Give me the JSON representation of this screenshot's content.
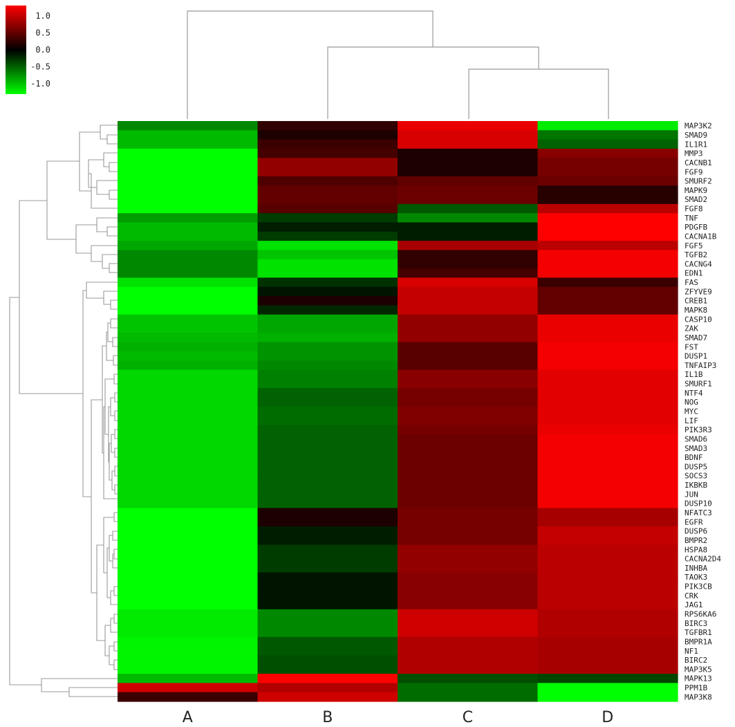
{
  "chart_data": {
    "type": "heatmap",
    "columns": [
      "A",
      "B",
      "C",
      "D"
    ],
    "rows": [
      "MAP3K2",
      "SMAD9",
      "IL1R1",
      "MMP3",
      "CACNB1",
      "FGF9",
      "SMURF2",
      "MAPK9",
      "SMAD2",
      "FGF8",
      "TNF",
      "PDGFB",
      "CACNA1B",
      "FGF5",
      "TGFB2",
      "CACNG4",
      "EDN1",
      "FAS",
      "ZFYVE9",
      "CREB1",
      "MAPK8",
      "CASP10",
      "ZAK",
      "SMAD7",
      "FST",
      "DUSP1",
      "TNFAIP3",
      "IL1B",
      "SMURF1",
      "NTF4",
      "NOG",
      "MYC",
      "LIF",
      "PIK3R3",
      "SMAD6",
      "SMAD3",
      "BDNF",
      "DUSP5",
      "SOCS3",
      "IKBKB",
      "JUN",
      "DUSP10",
      "NFATC3",
      "EGFR",
      "DUSP6",
      "BMPR2",
      "HSPA8",
      "CACNA2D4",
      "INHBA",
      "TAOK3",
      "PIK3CB",
      "CRK",
      "JAG1",
      "RPS6KA6",
      "BIRC3",
      "TGFBR1",
      "BMPR1A",
      "NF1",
      "BIRC2",
      "MAP3K5",
      "MAPK13",
      "PPM1B",
      "MAP3K8"
    ],
    "values": [
      [
        -0.7,
        0.25,
        1.2,
        -1.2
      ],
      [
        -0.95,
        0.15,
        1.1,
        -0.6
      ],
      [
        -0.95,
        0.3,
        1.1,
        -0.5
      ],
      [
        -1.3,
        0.35,
        0.15,
        0.7
      ],
      [
        -1.3,
        0.75,
        0.15,
        0.6
      ],
      [
        -1.3,
        0.75,
        0.15,
        0.6
      ],
      [
        -1.3,
        0.4,
        0.5,
        0.55
      ],
      [
        -1.3,
        0.5,
        0.55,
        0.2
      ],
      [
        -1.3,
        0.5,
        0.55,
        0.2
      ],
      [
        -1.3,
        0.45,
        -0.45,
        0.95
      ],
      [
        -0.8,
        -0.3,
        -0.7,
        1.3
      ],
      [
        -0.95,
        -0.15,
        -0.15,
        1.3
      ],
      [
        -0.95,
        -0.3,
        -0.15,
        1.3
      ],
      [
        -0.85,
        -1.15,
        0.85,
        0.95
      ],
      [
        -0.7,
        -1.0,
        0.25,
        1.25
      ],
      [
        -0.7,
        -1.15,
        0.25,
        1.25
      ],
      [
        -0.7,
        -1.15,
        0.35,
        1.25
      ],
      [
        -1.15,
        -0.25,
        1.1,
        0.3
      ],
      [
        -1.3,
        -0.1,
        1.0,
        0.5
      ],
      [
        -1.3,
        0.15,
        1.0,
        0.5
      ],
      [
        -1.3,
        -0.2,
        1.0,
        0.5
      ],
      [
        -1.0,
        -0.85,
        0.75,
        1.2
      ],
      [
        -1.0,
        -0.85,
        0.75,
        1.2
      ],
      [
        -0.95,
        -0.9,
        0.75,
        1.2
      ],
      [
        -0.9,
        -0.75,
        0.45,
        1.25
      ],
      [
        -0.95,
        -0.75,
        0.45,
        1.25
      ],
      [
        -0.9,
        -0.7,
        0.45,
        1.25
      ],
      [
        -1.1,
        -0.65,
        0.7,
        1.15
      ],
      [
        -1.1,
        -0.65,
        0.7,
        1.15
      ],
      [
        -1.1,
        -0.5,
        0.6,
        1.15
      ],
      [
        -1.1,
        -0.5,
        0.6,
        1.15
      ],
      [
        -1.1,
        -0.55,
        0.65,
        1.15
      ],
      [
        -1.1,
        -0.55,
        0.65,
        1.15
      ],
      [
        -1.1,
        -0.5,
        0.6,
        1.2
      ],
      [
        -1.1,
        -0.5,
        0.55,
        1.25
      ],
      [
        -1.1,
        -0.5,
        0.55,
        1.25
      ],
      [
        -1.1,
        -0.5,
        0.55,
        1.25
      ],
      [
        -1.1,
        -0.5,
        0.55,
        1.25
      ],
      [
        -1.1,
        -0.5,
        0.55,
        1.25
      ],
      [
        -1.1,
        -0.5,
        0.55,
        1.25
      ],
      [
        -1.1,
        -0.5,
        0.55,
        1.25
      ],
      [
        -1.1,
        -0.5,
        0.55,
        1.25
      ],
      [
        -1.35,
        0.15,
        0.6,
        0.85
      ],
      [
        -1.35,
        0.15,
        0.6,
        0.85
      ],
      [
        -1.3,
        -0.15,
        0.6,
        1.0
      ],
      [
        -1.3,
        -0.15,
        0.6,
        1.0
      ],
      [
        -1.3,
        -0.3,
        0.75,
        0.95
      ],
      [
        -1.3,
        -0.3,
        0.75,
        0.95
      ],
      [
        -1.3,
        -0.3,
        0.75,
        0.95
      ],
      [
        -1.3,
        -0.1,
        0.7,
        0.95
      ],
      [
        -1.3,
        -0.1,
        0.7,
        0.95
      ],
      [
        -1.3,
        -0.1,
        0.7,
        0.95
      ],
      [
        -1.3,
        -0.1,
        0.7,
        0.95
      ],
      [
        -1.2,
        -0.7,
        1.05,
        0.9
      ],
      [
        -1.2,
        -0.7,
        1.05,
        0.9
      ],
      [
        -1.2,
        -0.7,
        1.05,
        0.9
      ],
      [
        -1.25,
        -0.45,
        0.9,
        0.85
      ],
      [
        -1.25,
        -0.45,
        0.9,
        0.85
      ],
      [
        -1.25,
        -0.4,
        0.9,
        0.85
      ],
      [
        -1.25,
        -0.4,
        0.9,
        0.85
      ],
      [
        -0.95,
        1.3,
        -0.4,
        -0.35
      ],
      [
        1.05,
        0.9,
        -0.55,
        -1.3
      ],
      [
        0.3,
        1.05,
        -0.55,
        -1.3
      ]
    ],
    "color_scale": {
      "low": "#00ff00",
      "mid": "#000000",
      "high": "#ff0000",
      "min": -1.3,
      "max": 1.3
    },
    "legend_ticks": [
      "1.0",
      "0.5",
      "0.0",
      "-0.5",
      "-1.0"
    ],
    "column_dendrogram": true,
    "row_dendrogram": true
  }
}
